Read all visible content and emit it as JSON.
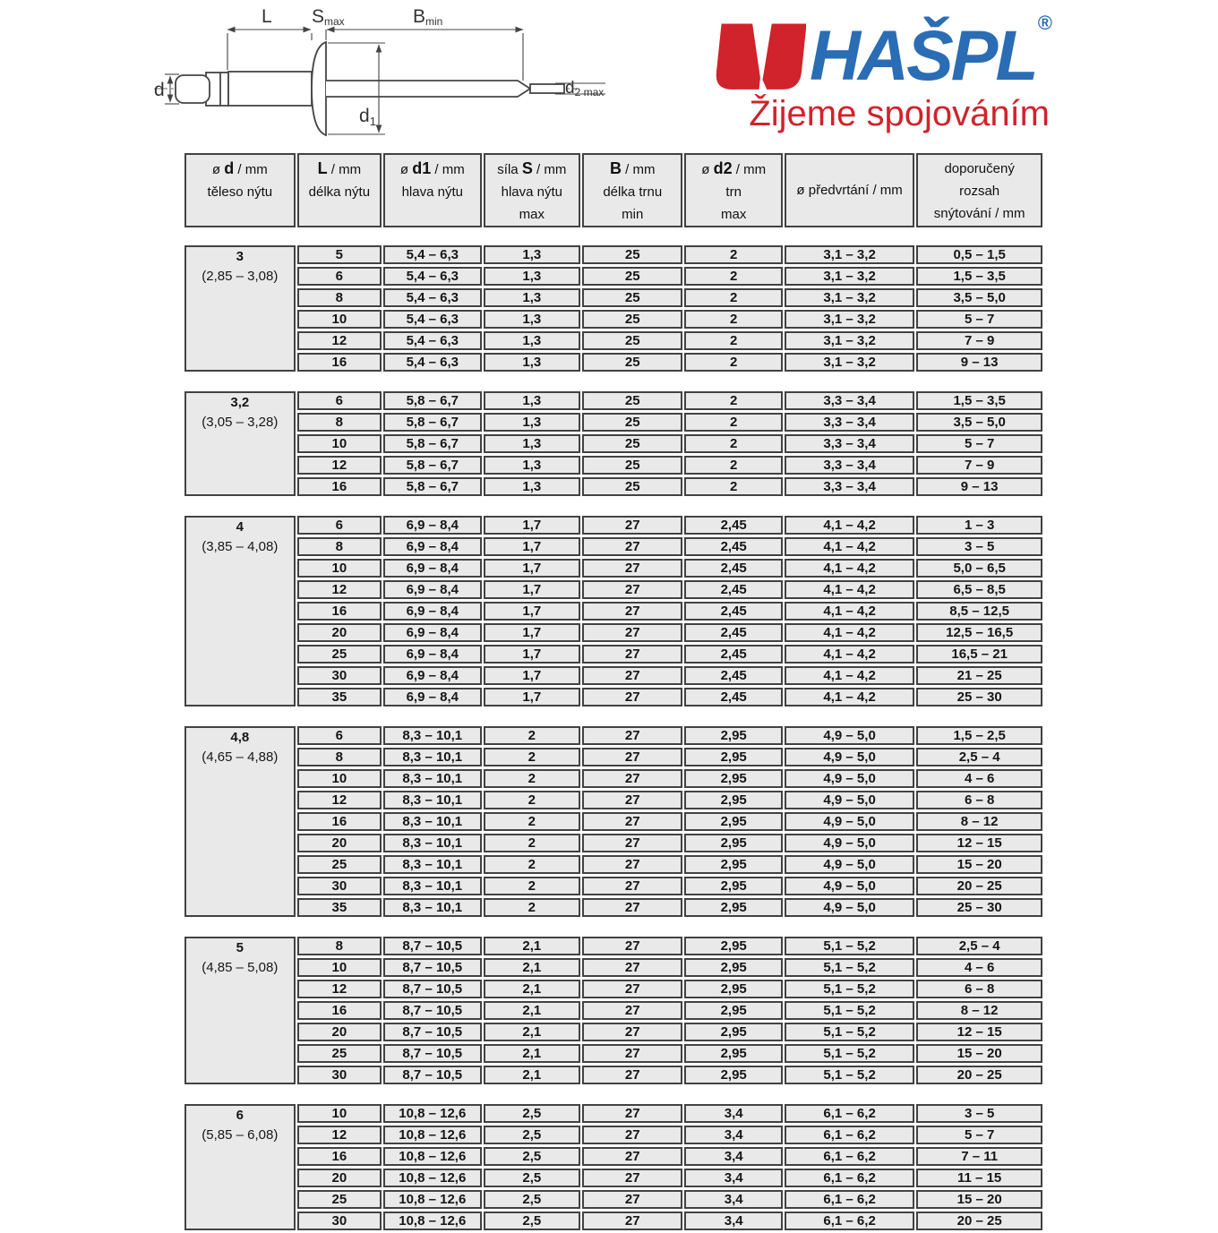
{
  "logo": {
    "brand": "HAŠPL",
    "registered": "®",
    "tagline": "Žijeme spojováním",
    "brand_color": "#2a6db5",
    "accent_color": "#d0232b"
  },
  "diagram": {
    "labels": {
      "L": "L",
      "S": "S",
      "S_sub": "max",
      "B": "B",
      "B_sub": "min",
      "d": "d",
      "d1": "d",
      "d1_sub": "1",
      "d2": "d",
      "d2_sub": "2 max"
    }
  },
  "table": {
    "headers": [
      {
        "pre": "ø ",
        "sym": "d",
        "post": " / mm",
        "lines": [
          "těleso nýtu"
        ],
        "center": false
      },
      {
        "pre": "",
        "sym": "L",
        "post": " / mm",
        "lines": [
          "délka nýtu"
        ],
        "center": false
      },
      {
        "pre": "ø ",
        "sym": "d1",
        "post": " / mm",
        "lines": [
          "hlava nýtu"
        ],
        "center": false
      },
      {
        "pre": "síla ",
        "sym": "S",
        "post": " / mm",
        "lines": [
          "hlava nýtu",
          "max"
        ],
        "center": false
      },
      {
        "pre": "",
        "sym": "B",
        "post": " / mm",
        "lines": [
          "délka trnu",
          "min"
        ],
        "center": false
      },
      {
        "pre": "ø ",
        "sym": "d2",
        "post": " / mm",
        "lines": [
          "trn",
          "max"
        ],
        "center": false
      },
      {
        "pre": "ø předvrtání / mm",
        "sym": "",
        "post": "",
        "lines": [],
        "center": true
      },
      {
        "pre": "doporučený",
        "sym": "",
        "post": "",
        "lines": [
          "rozsah",
          "snýtování / mm"
        ],
        "center": false
      }
    ],
    "groups": [
      {
        "d": "3",
        "range": "(2,85 – 3,08)",
        "rows": [
          [
            "5",
            "5,4 – 6,3",
            "1,3",
            "25",
            "2",
            "3,1 – 3,2",
            "0,5 – 1,5"
          ],
          [
            "6",
            "5,4 – 6,3",
            "1,3",
            "25",
            "2",
            "3,1 – 3,2",
            "1,5 – 3,5"
          ],
          [
            "8",
            "5,4 – 6,3",
            "1,3",
            "25",
            "2",
            "3,1 – 3,2",
            "3,5 – 5,0"
          ],
          [
            "10",
            "5,4 – 6,3",
            "1,3",
            "25",
            "2",
            "3,1 – 3,2",
            "5 – 7"
          ],
          [
            "12",
            "5,4 – 6,3",
            "1,3",
            "25",
            "2",
            "3,1 – 3,2",
            "7 – 9"
          ],
          [
            "16",
            "5,4 – 6,3",
            "1,3",
            "25",
            "2",
            "3,1 – 3,2",
            "9 – 13"
          ]
        ]
      },
      {
        "d": "3,2",
        "range": "(3,05 – 3,28)",
        "rows": [
          [
            "6",
            "5,8 – 6,7",
            "1,3",
            "25",
            "2",
            "3,3 – 3,4",
            "1,5 – 3,5"
          ],
          [
            "8",
            "5,8 – 6,7",
            "1,3",
            "25",
            "2",
            "3,3 – 3,4",
            "3,5 – 5,0"
          ],
          [
            "10",
            "5,8 – 6,7",
            "1,3",
            "25",
            "2",
            "3,3 – 3,4",
            "5 – 7"
          ],
          [
            "12",
            "5,8 – 6,7",
            "1,3",
            "25",
            "2",
            "3,3 – 3,4",
            "7 – 9"
          ],
          [
            "16",
            "5,8 – 6,7",
            "1,3",
            "25",
            "2",
            "3,3 – 3,4",
            "9 – 13"
          ]
        ]
      },
      {
        "d": "4",
        "range": "(3,85 – 4,08)",
        "rows": [
          [
            "6",
            "6,9 – 8,4",
            "1,7",
            "27",
            "2,45",
            "4,1 – 4,2",
            "1 – 3"
          ],
          [
            "8",
            "6,9 – 8,4",
            "1,7",
            "27",
            "2,45",
            "4,1 – 4,2",
            "3 – 5"
          ],
          [
            "10",
            "6,9 – 8,4",
            "1,7",
            "27",
            "2,45",
            "4,1 – 4,2",
            "5,0 – 6,5"
          ],
          [
            "12",
            "6,9 – 8,4",
            "1,7",
            "27",
            "2,45",
            "4,1 – 4,2",
            "6,5 – 8,5"
          ],
          [
            "16",
            "6,9 – 8,4",
            "1,7",
            "27",
            "2,45",
            "4,1 – 4,2",
            "8,5 – 12,5"
          ],
          [
            "20",
            "6,9 – 8,4",
            "1,7",
            "27",
            "2,45",
            "4,1 – 4,2",
            "12,5 – 16,5"
          ],
          [
            "25",
            "6,9 – 8,4",
            "1,7",
            "27",
            "2,45",
            "4,1 – 4,2",
            "16,5 – 21"
          ],
          [
            "30",
            "6,9 – 8,4",
            "1,7",
            "27",
            "2,45",
            "4,1 – 4,2",
            "21 – 25"
          ],
          [
            "35",
            "6,9 – 8,4",
            "1,7",
            "27",
            "2,45",
            "4,1 – 4,2",
            "25 – 30"
          ]
        ]
      },
      {
        "d": "4,8",
        "range": "(4,65 – 4,88)",
        "rows": [
          [
            "6",
            "8,3 – 10,1",
            "2",
            "27",
            "2,95",
            "4,9 – 5,0",
            "1,5 – 2,5"
          ],
          [
            "8",
            "8,3 – 10,1",
            "2",
            "27",
            "2,95",
            "4,9 – 5,0",
            "2,5 – 4"
          ],
          [
            "10",
            "8,3 – 10,1",
            "2",
            "27",
            "2,95",
            "4,9 – 5,0",
            "4 – 6"
          ],
          [
            "12",
            "8,3 – 10,1",
            "2",
            "27",
            "2,95",
            "4,9 – 5,0",
            "6 – 8"
          ],
          [
            "16",
            "8,3 – 10,1",
            "2",
            "27",
            "2,95",
            "4,9 – 5,0",
            "8 – 12"
          ],
          [
            "20",
            "8,3 – 10,1",
            "2",
            "27",
            "2,95",
            "4,9 – 5,0",
            "12 – 15"
          ],
          [
            "25",
            "8,3 – 10,1",
            "2",
            "27",
            "2,95",
            "4,9 – 5,0",
            "15 – 20"
          ],
          [
            "30",
            "8,3 – 10,1",
            "2",
            "27",
            "2,95",
            "4,9 – 5,0",
            "20 – 25"
          ],
          [
            "35",
            "8,3 – 10,1",
            "2",
            "27",
            "2,95",
            "4,9 – 5,0",
            "25 – 30"
          ]
        ]
      },
      {
        "d": "5",
        "range": "(4,85 – 5,08)",
        "rows": [
          [
            "8",
            "8,7 – 10,5",
            "2,1",
            "27",
            "2,95",
            "5,1 – 5,2",
            "2,5 – 4"
          ],
          [
            "10",
            "8,7 – 10,5",
            "2,1",
            "27",
            "2,95",
            "5,1 – 5,2",
            "4 – 6"
          ],
          [
            "12",
            "8,7 – 10,5",
            "2,1",
            "27",
            "2,95",
            "5,1 – 5,2",
            "6 – 8"
          ],
          [
            "16",
            "8,7 – 10,5",
            "2,1",
            "27",
            "2,95",
            "5,1 – 5,2",
            "8 – 12"
          ],
          [
            "20",
            "8,7 – 10,5",
            "2,1",
            "27",
            "2,95",
            "5,1 – 5,2",
            "12 – 15"
          ],
          [
            "25",
            "8,7 – 10,5",
            "2,1",
            "27",
            "2,95",
            "5,1 – 5,2",
            "15 – 20"
          ],
          [
            "30",
            "8,7 – 10,5",
            "2,1",
            "27",
            "2,95",
            "5,1 – 5,2",
            "20 – 25"
          ]
        ]
      },
      {
        "d": "6",
        "range": "(5,85 – 6,08)",
        "rows": [
          [
            "10",
            "10,8 – 12,6",
            "2,5",
            "27",
            "3,4",
            "6,1 – 6,2",
            "3 – 5"
          ],
          [
            "12",
            "10,8 – 12,6",
            "2,5",
            "27",
            "3,4",
            "6,1 – 6,2",
            "5 – 7"
          ],
          [
            "16",
            "10,8 – 12,6",
            "2,5",
            "27",
            "3,4",
            "6,1 – 6,2",
            "7 – 11"
          ],
          [
            "20",
            "10,8 – 12,6",
            "2,5",
            "27",
            "3,4",
            "6,1 – 6,2",
            "11 – 15"
          ],
          [
            "25",
            "10,8 – 12,6",
            "2,5",
            "27",
            "3,4",
            "6,1 – 6,2",
            "15 – 20"
          ],
          [
            "30",
            "10,8 – 12,6",
            "2,5",
            "27",
            "3,4",
            "6,1 – 6,2",
            "20 – 25"
          ]
        ]
      }
    ]
  }
}
